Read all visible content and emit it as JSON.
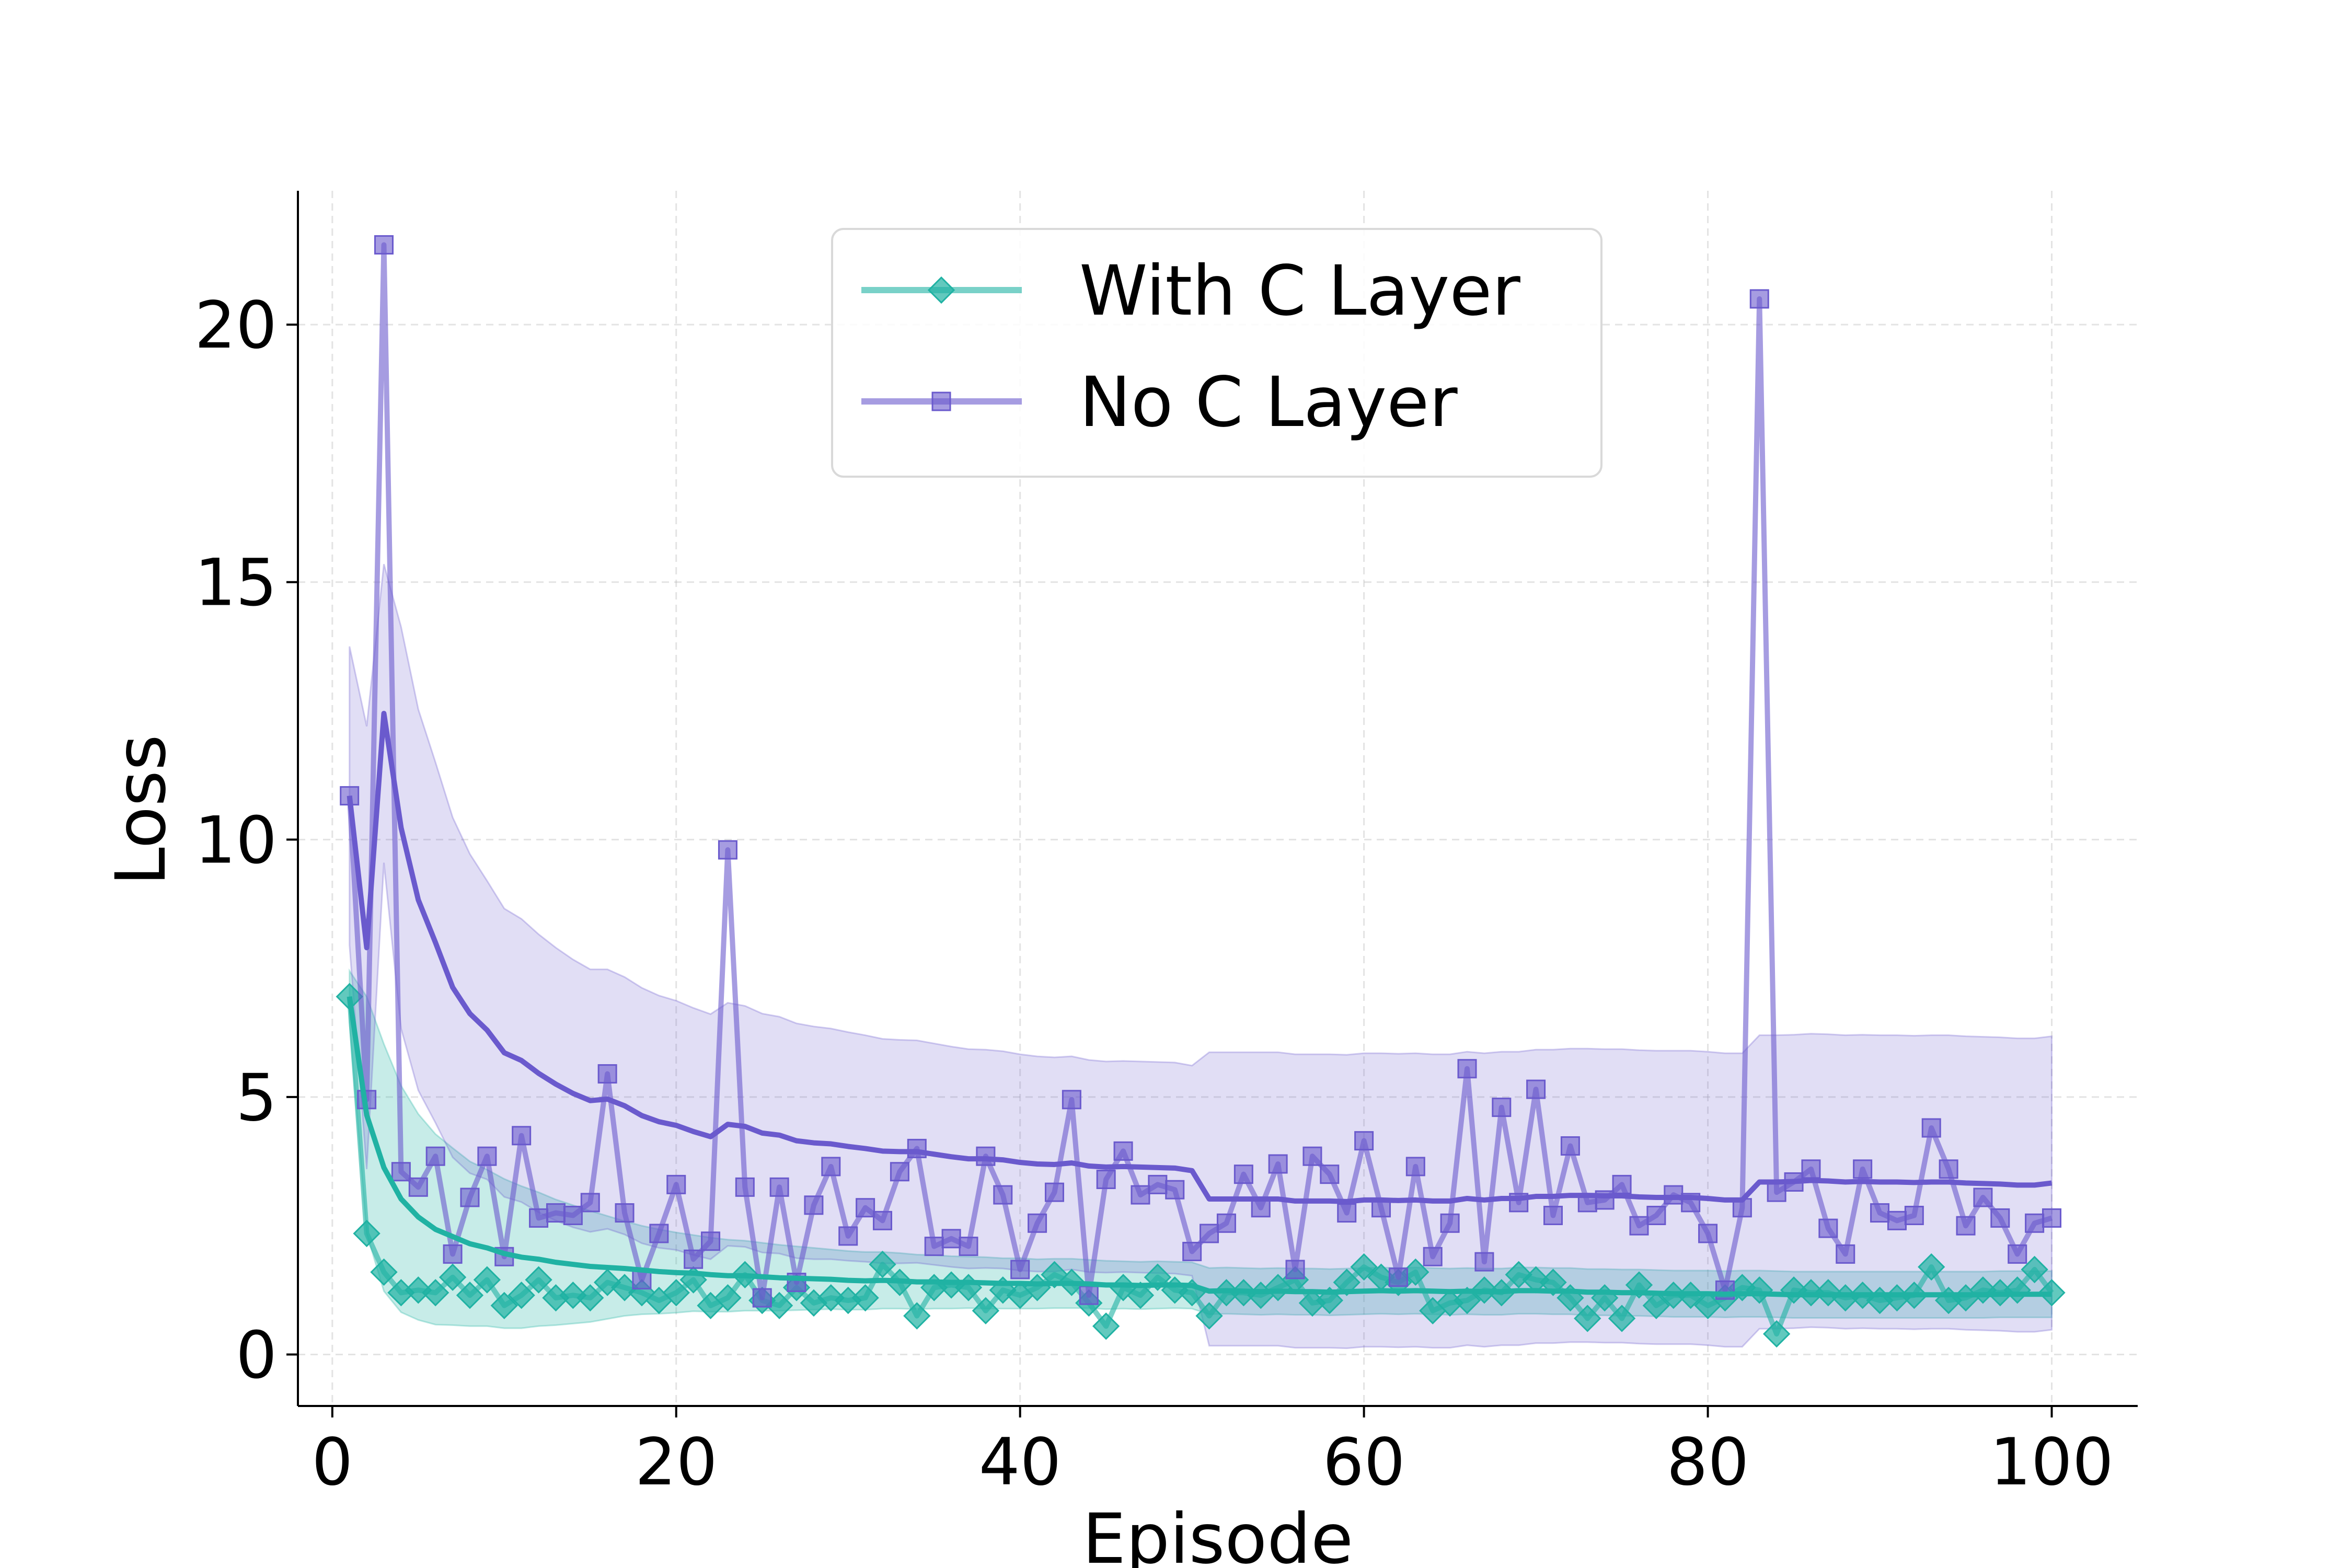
{
  "chart_data": {
    "type": "line",
    "xlabel": "Episode",
    "ylabel": "Loss",
    "xlim": [
      -2,
      105
    ],
    "ylim": [
      -1,
      22.6
    ],
    "x_ticks": [
      0,
      20,
      40,
      60,
      80,
      100
    ],
    "y_ticks": [
      0,
      5,
      10,
      15,
      20
    ],
    "x_tick_labels": [
      "0",
      "20",
      "40",
      "60",
      "80",
      "100"
    ],
    "y_tick_labels": [
      "0",
      "5",
      "10",
      "15",
      "20"
    ],
    "grid": true,
    "legend_position": "top-center",
    "series": [
      {
        "name": "With C Layer",
        "color": "#20b2a3",
        "marker": "diamond",
        "x": [
          1,
          2,
          3,
          4,
          5,
          6,
          7,
          8,
          9,
          10,
          11,
          12,
          13,
          14,
          15,
          16,
          17,
          18,
          19,
          20,
          21,
          22,
          23,
          24,
          25,
          26,
          27,
          28,
          29,
          30,
          31,
          32,
          33,
          34,
          35,
          36,
          37,
          38,
          39,
          40,
          41,
          42,
          43,
          44,
          45,
          46,
          47,
          48,
          49,
          50,
          51,
          52,
          53,
          54,
          55,
          56,
          57,
          58,
          59,
          60,
          61,
          62,
          63,
          64,
          65,
          66,
          67,
          68,
          69,
          70,
          71,
          72,
          73,
          74,
          75,
          76,
          77,
          78,
          79,
          80,
          81,
          82,
          83,
          84,
          85,
          86,
          87,
          88,
          89,
          90,
          91,
          92,
          93,
          94,
          95,
          96,
          97,
          98,
          99,
          100
        ],
        "values": [
          6.95,
          2.35,
          1.6,
          1.2,
          1.25,
          1.2,
          1.5,
          1.15,
          1.45,
          0.95,
          1.15,
          1.45,
          1.1,
          1.15,
          1.1,
          1.4,
          1.3,
          1.2,
          1.05,
          1.2,
          1.45,
          0.95,
          1.1,
          1.55,
          1.05,
          0.95,
          1.3,
          1.0,
          1.1,
          1.05,
          1.1,
          1.75,
          1.4,
          0.75,
          1.3,
          1.35,
          1.3,
          0.85,
          1.25,
          1.15,
          1.3,
          1.55,
          1.4,
          1.0,
          0.55,
          1.3,
          1.15,
          1.5,
          1.25,
          1.2,
          0.75,
          1.2,
          1.2,
          1.15,
          1.3,
          1.45,
          1.0,
          1.05,
          1.4,
          1.7,
          1.5,
          1.4,
          1.6,
          0.85,
          1.0,
          1.05,
          1.25,
          1.2,
          1.55,
          1.45,
          1.4,
          1.1,
          0.7,
          1.1,
          0.7,
          1.35,
          0.95,
          1.15,
          1.15,
          0.95,
          1.1,
          1.3,
          1.25,
          0.4,
          1.25,
          1.2,
          1.2,
          1.1,
          1.15,
          1.05,
          1.1,
          1.15,
          1.7,
          1.05,
          1.1,
          1.25,
          1.2,
          1.25,
          1.65,
          1.2
        ],
        "mean": [
          6.95,
          4.65,
          3.63,
          3.02,
          2.67,
          2.43,
          2.29,
          2.15,
          2.07,
          1.96,
          1.89,
          1.85,
          1.79,
          1.75,
          1.71,
          1.69,
          1.67,
          1.64,
          1.61,
          1.59,
          1.58,
          1.55,
          1.53,
          1.53,
          1.51,
          1.49,
          1.48,
          1.47,
          1.46,
          1.44,
          1.43,
          1.44,
          1.43,
          1.41,
          1.41,
          1.4,
          1.4,
          1.39,
          1.38,
          1.38,
          1.37,
          1.38,
          1.38,
          1.37,
          1.35,
          1.35,
          1.34,
          1.35,
          1.35,
          1.34,
          1.23,
          1.24,
          1.23,
          1.22,
          1.23,
          1.22,
          1.22,
          1.21,
          1.22,
          1.23,
          1.24,
          1.23,
          1.24,
          1.23,
          1.22,
          1.23,
          1.22,
          1.22,
          1.24,
          1.24,
          1.23,
          1.23,
          1.21,
          1.21,
          1.2,
          1.2,
          1.19,
          1.18,
          1.18,
          1.18,
          1.17,
          1.18,
          1.18,
          1.17,
          1.16,
          1.16,
          1.16,
          1.16,
          1.16,
          1.16,
          1.16,
          1.16,
          1.16,
          1.16,
          1.16,
          1.16,
          1.17,
          1.17,
          1.17,
          1.17
        ],
        "std": [
          0.5,
          2.3,
          2.4,
          2.2,
          2.0,
          1.85,
          1.72,
          1.6,
          1.52,
          1.45,
          1.38,
          1.3,
          1.22,
          1.15,
          1.08,
          1.0,
          0.92,
          0.86,
          0.82,
          0.78,
          0.74,
          0.72,
          0.7,
          0.68,
          0.66,
          0.64,
          0.62,
          0.6,
          0.58,
          0.57,
          0.56,
          0.55,
          0.54,
          0.53,
          0.52,
          0.51,
          0.5,
          0.5,
          0.49,
          0.49,
          0.48,
          0.48,
          0.48,
          0.47,
          0.47,
          0.46,
          0.46,
          0.46,
          0.45,
          0.45,
          0.45,
          0.45,
          0.45,
          0.45,
          0.45,
          0.45,
          0.45,
          0.45,
          0.45,
          0.45,
          0.45,
          0.45,
          0.45,
          0.45,
          0.45,
          0.45,
          0.45,
          0.45,
          0.45,
          0.45,
          0.45,
          0.45,
          0.45,
          0.45,
          0.45,
          0.45,
          0.45,
          0.45,
          0.45,
          0.45,
          0.45,
          0.45,
          0.45,
          0.45,
          0.45,
          0.45,
          0.45,
          0.45,
          0.45,
          0.45,
          0.45,
          0.45,
          0.45,
          0.45,
          0.45,
          0.45,
          0.45,
          0.45,
          0.45,
          0.45
        ]
      },
      {
        "name": "No C Layer",
        "color": "#6a5acd",
        "marker": "square",
        "x": [
          1,
          2,
          3,
          4,
          5,
          6,
          7,
          8,
          9,
          10,
          11,
          12,
          13,
          14,
          15,
          16,
          17,
          18,
          19,
          20,
          21,
          22,
          23,
          24,
          25,
          26,
          27,
          28,
          29,
          30,
          31,
          32,
          33,
          34,
          35,
          36,
          37,
          38,
          39,
          40,
          41,
          42,
          43,
          44,
          45,
          46,
          47,
          48,
          49,
          50,
          51,
          52,
          53,
          54,
          55,
          56,
          57,
          58,
          59,
          60,
          61,
          62,
          63,
          64,
          65,
          66,
          67,
          68,
          69,
          70,
          71,
          72,
          73,
          74,
          75,
          76,
          77,
          78,
          79,
          80,
          81,
          82,
          83,
          84,
          85,
          86,
          87,
          88,
          89,
          90,
          91,
          92,
          93,
          94,
          95,
          96,
          97,
          98,
          99,
          100
        ],
        "values": [
          10.85,
          4.95,
          21.55,
          3.55,
          3.25,
          3.85,
          1.95,
          3.05,
          3.85,
          1.9,
          4.25,
          2.65,
          2.75,
          2.7,
          2.95,
          5.45,
          2.75,
          1.45,
          2.35,
          3.3,
          1.85,
          2.2,
          9.8,
          3.25,
          1.1,
          3.25,
          1.4,
          2.9,
          3.65,
          2.3,
          2.85,
          2.6,
          3.55,
          4.0,
          2.1,
          2.25,
          2.1,
          3.85,
          3.1,
          1.65,
          2.55,
          3.15,
          4.95,
          1.15,
          3.4,
          3.95,
          3.1,
          3.3,
          3.2,
          2.0,
          2.35,
          2.55,
          3.5,
          2.85,
          3.7,
          1.65,
          3.85,
          3.5,
          2.75,
          4.15,
          2.85,
          1.5,
          3.65,
          1.9,
          2.55,
          5.55,
          1.8,
          4.8,
          2.95,
          5.15,
          2.7,
          4.05,
          2.95,
          3.0,
          3.3,
          2.5,
          2.7,
          3.1,
          2.95,
          2.35,
          1.25,
          2.85,
          20.5,
          3.15,
          3.35,
          3.6,
          2.45,
          1.95,
          3.6,
          2.75,
          2.6,
          2.7,
          4.4,
          3.6,
          2.5,
          3.05,
          2.65,
          1.95,
          2.55,
          2.65
        ],
        "mean": [
          10.85,
          7.9,
          12.45,
          10.23,
          8.83,
          8.0,
          7.13,
          6.62,
          6.3,
          5.86,
          5.71,
          5.46,
          5.25,
          5.07,
          4.93,
          4.96,
          4.83,
          4.64,
          4.52,
          4.45,
          4.33,
          4.23,
          4.47,
          4.43,
          4.3,
          4.26,
          4.15,
          4.11,
          4.09,
          4.04,
          4.0,
          3.95,
          3.94,
          3.94,
          3.89,
          3.84,
          3.8,
          3.8,
          3.78,
          3.73,
          3.7,
          3.69,
          3.72,
          3.66,
          3.64,
          3.65,
          3.64,
          3.63,
          3.62,
          3.57,
          3.02,
          3.02,
          3.02,
          3.02,
          3.02,
          2.98,
          2.98,
          2.98,
          2.97,
          3.0,
          3.0,
          2.99,
          3.0,
          2.98,
          2.98,
          3.03,
          3.0,
          3.03,
          3.03,
          3.07,
          3.07,
          3.09,
          3.09,
          3.08,
          3.08,
          3.06,
          3.05,
          3.05,
          3.05,
          3.03,
          3.0,
          3.0,
          3.35,
          3.35,
          3.36,
          3.38,
          3.37,
          3.35,
          3.36,
          3.35,
          3.35,
          3.34,
          3.35,
          3.35,
          3.33,
          3.32,
          3.31,
          3.29,
          3.29,
          3.33
        ],
        "std": [
          2.9,
          4.3,
          2.9,
          3.9,
          3.7,
          3.5,
          3.3,
          3.1,
          2.9,
          2.8,
          2.75,
          2.7,
          2.65,
          2.6,
          2.55,
          2.52,
          2.5,
          2.48,
          2.45,
          2.42,
          2.4,
          2.38,
          2.36,
          2.34,
          2.32,
          2.3,
          2.28,
          2.26,
          2.24,
          2.22,
          2.2,
          2.18,
          2.17,
          2.16,
          2.15,
          2.14,
          2.13,
          2.12,
          2.11,
          2.1,
          2.09,
          2.08,
          2.07,
          2.06,
          2.05,
          2.05,
          2.05,
          2.05,
          2.05,
          2.04,
          2.85,
          2.85,
          2.85,
          2.85,
          2.85,
          2.85,
          2.85,
          2.85,
          2.85,
          2.85,
          2.85,
          2.85,
          2.85,
          2.85,
          2.85,
          2.85,
          2.85,
          2.85,
          2.85,
          2.85,
          2.85,
          2.85,
          2.85,
          2.85,
          2.85,
          2.85,
          2.85,
          2.85,
          2.85,
          2.85,
          2.85,
          2.85,
          2.85,
          2.85,
          2.85,
          2.85,
          2.85,
          2.85,
          2.85,
          2.85,
          2.85,
          2.85,
          2.85,
          2.85,
          2.85,
          2.85,
          2.85,
          2.85,
          2.85,
          2.85
        ]
      }
    ]
  }
}
